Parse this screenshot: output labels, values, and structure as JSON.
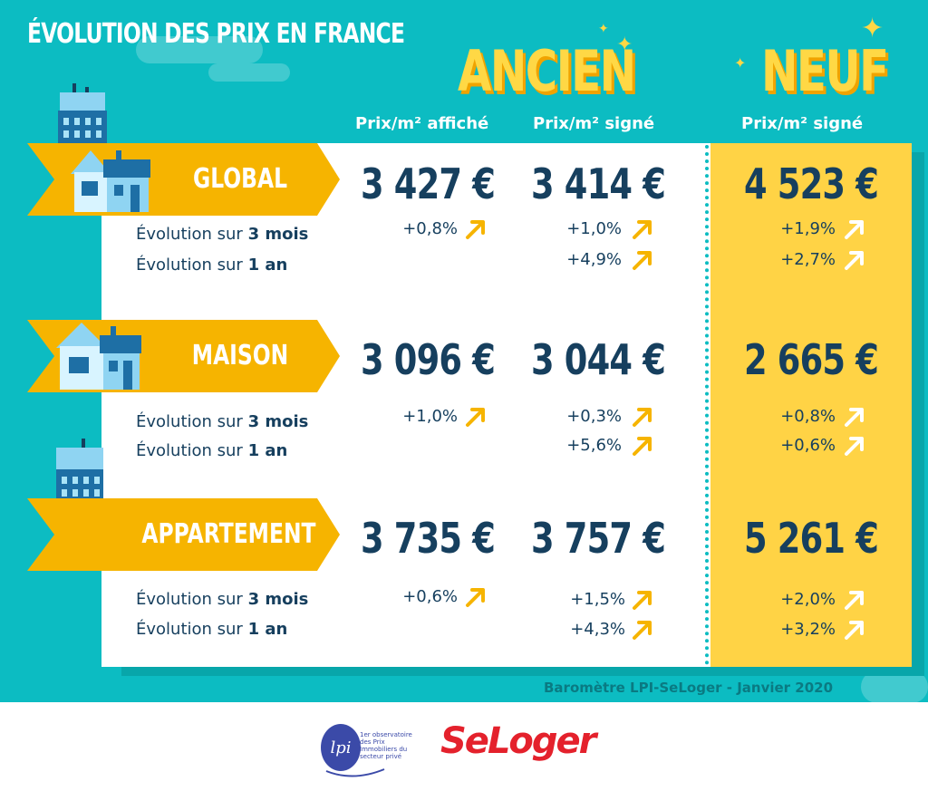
{
  "title": "ÉVOLUTION DES PRIX EN FRANCE",
  "headers": {
    "ancien": "ANCIEN",
    "neuf": "NEUF",
    "ancien_affiche": "Prix/m² affiché",
    "ancien_signe": "Prix/m² signé",
    "neuf_signe": "Prix/m² signé"
  },
  "evolution_prefix": "Évolution sur ",
  "period_3m": "3 mois",
  "period_1y": "1 an",
  "rows": [
    {
      "label": "GLOBAL",
      "ancien_affiche": "3 427 €",
      "ancien_signe": "3 414 €",
      "neuf": "4 523 €",
      "affiche_3m": "+0,8%",
      "signe_3m": "+1,0%",
      "signe_1y": "+4,9%",
      "neuf_3m": "+1,9%",
      "neuf_1y": "+2,7%"
    },
    {
      "label": "MAISON",
      "ancien_affiche": "3 096 €",
      "ancien_signe": "3 044 €",
      "neuf": "2 665 €",
      "affiche_3m": "+1,0%",
      "signe_3m": "+0,3%",
      "signe_1y": "+5,6%",
      "neuf_3m": "+0,8%",
      "neuf_1y": "+0,6%"
    },
    {
      "label": "APPARTEMENT",
      "ancien_affiche": "3 735 €",
      "ancien_signe": "3 757 €",
      "neuf": "5 261 €",
      "affiche_3m": "+0,6%",
      "signe_3m": "+1,5%",
      "signe_1y": "+4,3%",
      "neuf_3m": "+2,0%",
      "neuf_1y": "+3,2%"
    }
  ],
  "source": "Baromètre LPI-SeLoger - Janvier 2020",
  "logos": {
    "lpi_mark": "lpi",
    "lpi_text": "1er observatoire des Prix Immobiliers du secteur privé",
    "seloger": "SeLoger"
  },
  "colors": {
    "teal": "#0cbcc2",
    "yellow": "#ffd345",
    "ribbon": "#f6b400",
    "navy": "#163f5e",
    "seloger_red": "#e4212c"
  },
  "icons": {
    "up_arrow": "arrow-up-right-icon",
    "house": "house-icon",
    "building": "building-icon",
    "sparkle": "sparkle-icon"
  }
}
